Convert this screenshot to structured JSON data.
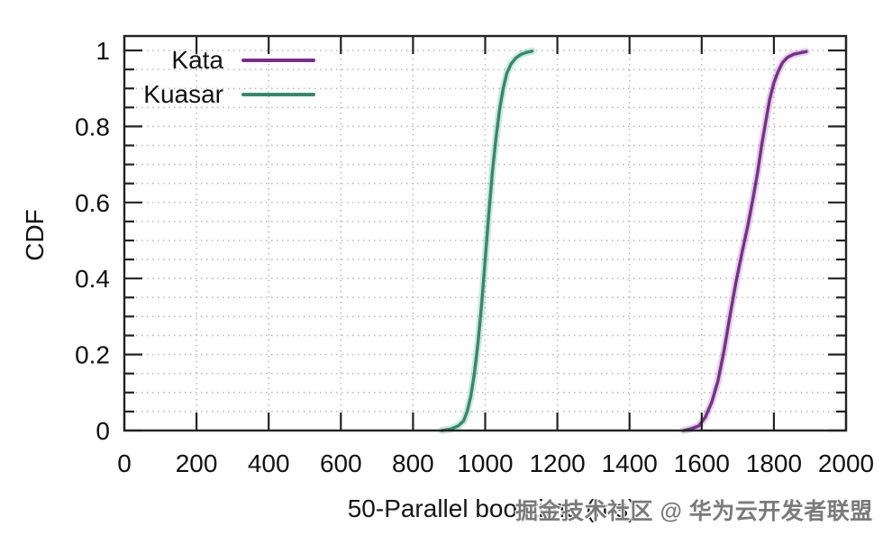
{
  "figure": {
    "background": "#ffffff"
  },
  "chart_data": {
    "type": "line",
    "subtype": "cdf",
    "title": "",
    "xlabel": "50-Parallel boot time (ms)",
    "ylabel": "CDF",
    "xlim": [
      0,
      2000
    ],
    "ylim": [
      0,
      1.05
    ],
    "grid": {
      "style": "dotted",
      "horizontal_step": 0.05,
      "vertical_step": 200
    },
    "legend": {
      "position": "top-left-inside",
      "entries": [
        "Kata",
        "Kuasar"
      ]
    },
    "x_ticks": {
      "values": [
        0,
        200,
        400,
        600,
        800,
        1000,
        1200,
        1400,
        1600,
        1800,
        2000
      ],
      "labels": [
        "0",
        "200",
        "400",
        "600",
        "800",
        "1000",
        "1200",
        "1400",
        "1600",
        "1800",
        "2000"
      ]
    },
    "y_ticks": {
      "values": [
        0,
        0.2,
        0.4,
        0.6,
        0.8,
        1
      ],
      "labels": [
        "0",
        "0.2",
        "0.4",
        "0.6",
        "0.8",
        "1"
      ],
      "minor_step": 0.05
    },
    "series": [
      {
        "name": "Kata",
        "color": "#7a2d8c",
        "points": [
          [
            1550,
            0
          ],
          [
            1572,
            0.005
          ],
          [
            1592,
            0.012
          ],
          [
            1610,
            0.035
          ],
          [
            1628,
            0.075
          ],
          [
            1645,
            0.13
          ],
          [
            1662,
            0.21
          ],
          [
            1678,
            0.3
          ],
          [
            1695,
            0.39
          ],
          [
            1712,
            0.47
          ],
          [
            1728,
            0.54
          ],
          [
            1742,
            0.61
          ],
          [
            1755,
            0.68
          ],
          [
            1766,
            0.75
          ],
          [
            1777,
            0.81
          ],
          [
            1788,
            0.87
          ],
          [
            1800,
            0.915
          ],
          [
            1812,
            0.945
          ],
          [
            1824,
            0.968
          ],
          [
            1838,
            0.982
          ],
          [
            1855,
            0.99
          ],
          [
            1875,
            0.994
          ],
          [
            1890,
            0.997
          ]
        ]
      },
      {
        "name": "Kuasar",
        "color": "#2e8b6e",
        "points": [
          [
            880,
            0
          ],
          [
            905,
            0.004
          ],
          [
            925,
            0.012
          ],
          [
            940,
            0.025
          ],
          [
            950,
            0.05
          ],
          [
            960,
            0.09
          ],
          [
            970,
            0.15
          ],
          [
            980,
            0.23
          ],
          [
            990,
            0.33
          ],
          [
            1000,
            0.45
          ],
          [
            1010,
            0.57
          ],
          [
            1020,
            0.68
          ],
          [
            1030,
            0.77
          ],
          [
            1040,
            0.845
          ],
          [
            1050,
            0.9
          ],
          [
            1060,
            0.94
          ],
          [
            1072,
            0.965
          ],
          [
            1085,
            0.98
          ],
          [
            1100,
            0.99
          ],
          [
            1115,
            0.995
          ],
          [
            1130,
            0.998
          ]
        ]
      }
    ]
  },
  "watermark": {
    "text": "掘金技术社区 @ 华为云开发者联盟",
    "color": "#7a7a7a"
  }
}
